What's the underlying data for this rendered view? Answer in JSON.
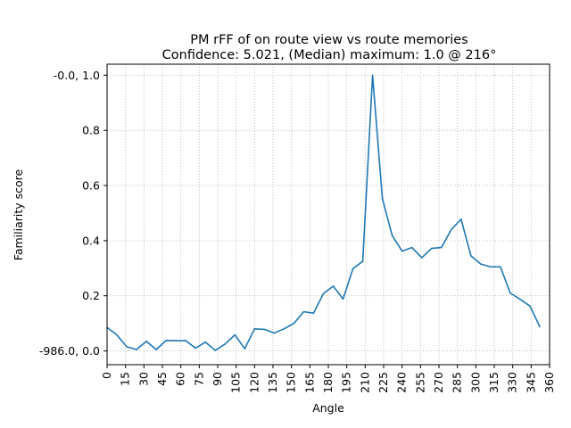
{
  "chart_data": {
    "type": "line",
    "title": "PM rFF of on route view vs route memories",
    "subtitle": "Confidence: 5.021, (Median) maximum: 1.0 @ 216°",
    "xlabel": "Angle",
    "ylabel": "Familiarity score",
    "xlim": [
      0,
      360
    ],
    "ylim": [
      -0.05,
      1.04
    ],
    "x_ticks": [
      0,
      15,
      30,
      45,
      60,
      75,
      90,
      105,
      120,
      135,
      150,
      165,
      180,
      195,
      210,
      225,
      240,
      255,
      270,
      285,
      300,
      315,
      330,
      345,
      360
    ],
    "y_ticks": [
      {
        "value": 0.0,
        "label": "-986.0, 0.0"
      },
      {
        "value": 0.2,
        "label": "0.2"
      },
      {
        "value": 0.4,
        "label": "0.4"
      },
      {
        "value": 0.6,
        "label": "0.6"
      },
      {
        "value": 0.8,
        "label": "0.8"
      },
      {
        "value": 1.0,
        "label": "-0.0, 1.0"
      }
    ],
    "grid": true,
    "series": [
      {
        "color": "#1f77b4",
        "x": [
          0,
          8,
          16,
          24,
          32,
          40,
          48,
          56,
          64,
          72,
          80,
          88,
          96,
          104,
          112,
          120,
          128,
          136,
          144,
          152,
          160,
          168,
          176,
          184,
          192,
          200,
          208,
          216,
          224,
          232,
          240,
          248,
          256,
          264,
          272,
          280,
          288,
          296,
          304,
          312,
          320,
          328,
          336,
          344,
          352
        ],
        "y": [
          0.085,
          0.058,
          0.015,
          0.005,
          0.035,
          0.005,
          0.038,
          0.037,
          0.037,
          0.01,
          0.032,
          0.002,
          0.025,
          0.058,
          0.008,
          0.08,
          0.078,
          0.065,
          0.08,
          0.1,
          0.142,
          0.137,
          0.208,
          0.235,
          0.188,
          0.298,
          0.325,
          1.0,
          0.552,
          0.418,
          0.362,
          0.375,
          0.338,
          0.372,
          0.375,
          0.44,
          0.478,
          0.345,
          0.315,
          0.305,
          0.305,
          0.21,
          0.187,
          0.163,
          0.088
        ]
      }
    ]
  }
}
